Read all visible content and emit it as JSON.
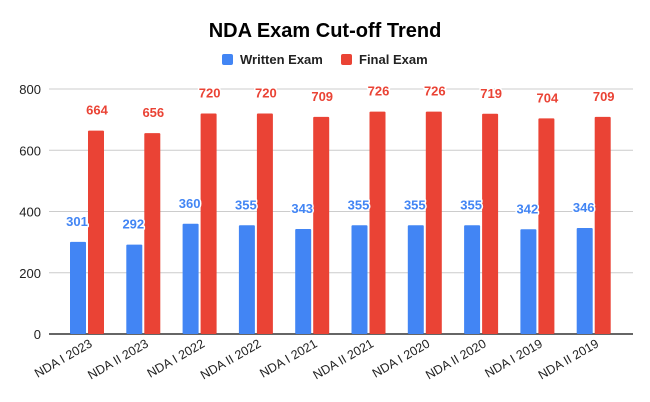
{
  "chart_data": {
    "type": "bar",
    "title": "NDA Exam Cut-off Trend",
    "xlabel": "",
    "ylabel": "",
    "ylim": [
      0,
      800
    ],
    "yticks": [
      0,
      200,
      400,
      600,
      800
    ],
    "grid": true,
    "legend_position": "top",
    "categories": [
      "NDA I 2023",
      "NDA II 2023",
      "NDA I 2022",
      "NDA II 2022",
      "NDA I 2021",
      "NDA II 2021",
      "NDA I 2020",
      "NDA II 2020",
      "NDA I 2019",
      "NDA II 2019"
    ],
    "series": [
      {
        "name": "Written Exam",
        "color": "#4285f4",
        "label_color": "#4285f4",
        "values": [
          301,
          292,
          360,
          355,
          343,
          355,
          355,
          355,
          342,
          346
        ]
      },
      {
        "name": "Final Exam",
        "color": "#ea4335",
        "label_color": "#ea4335",
        "values": [
          664,
          656,
          720,
          720,
          709,
          726,
          726,
          719,
          704,
          709
        ]
      }
    ]
  }
}
